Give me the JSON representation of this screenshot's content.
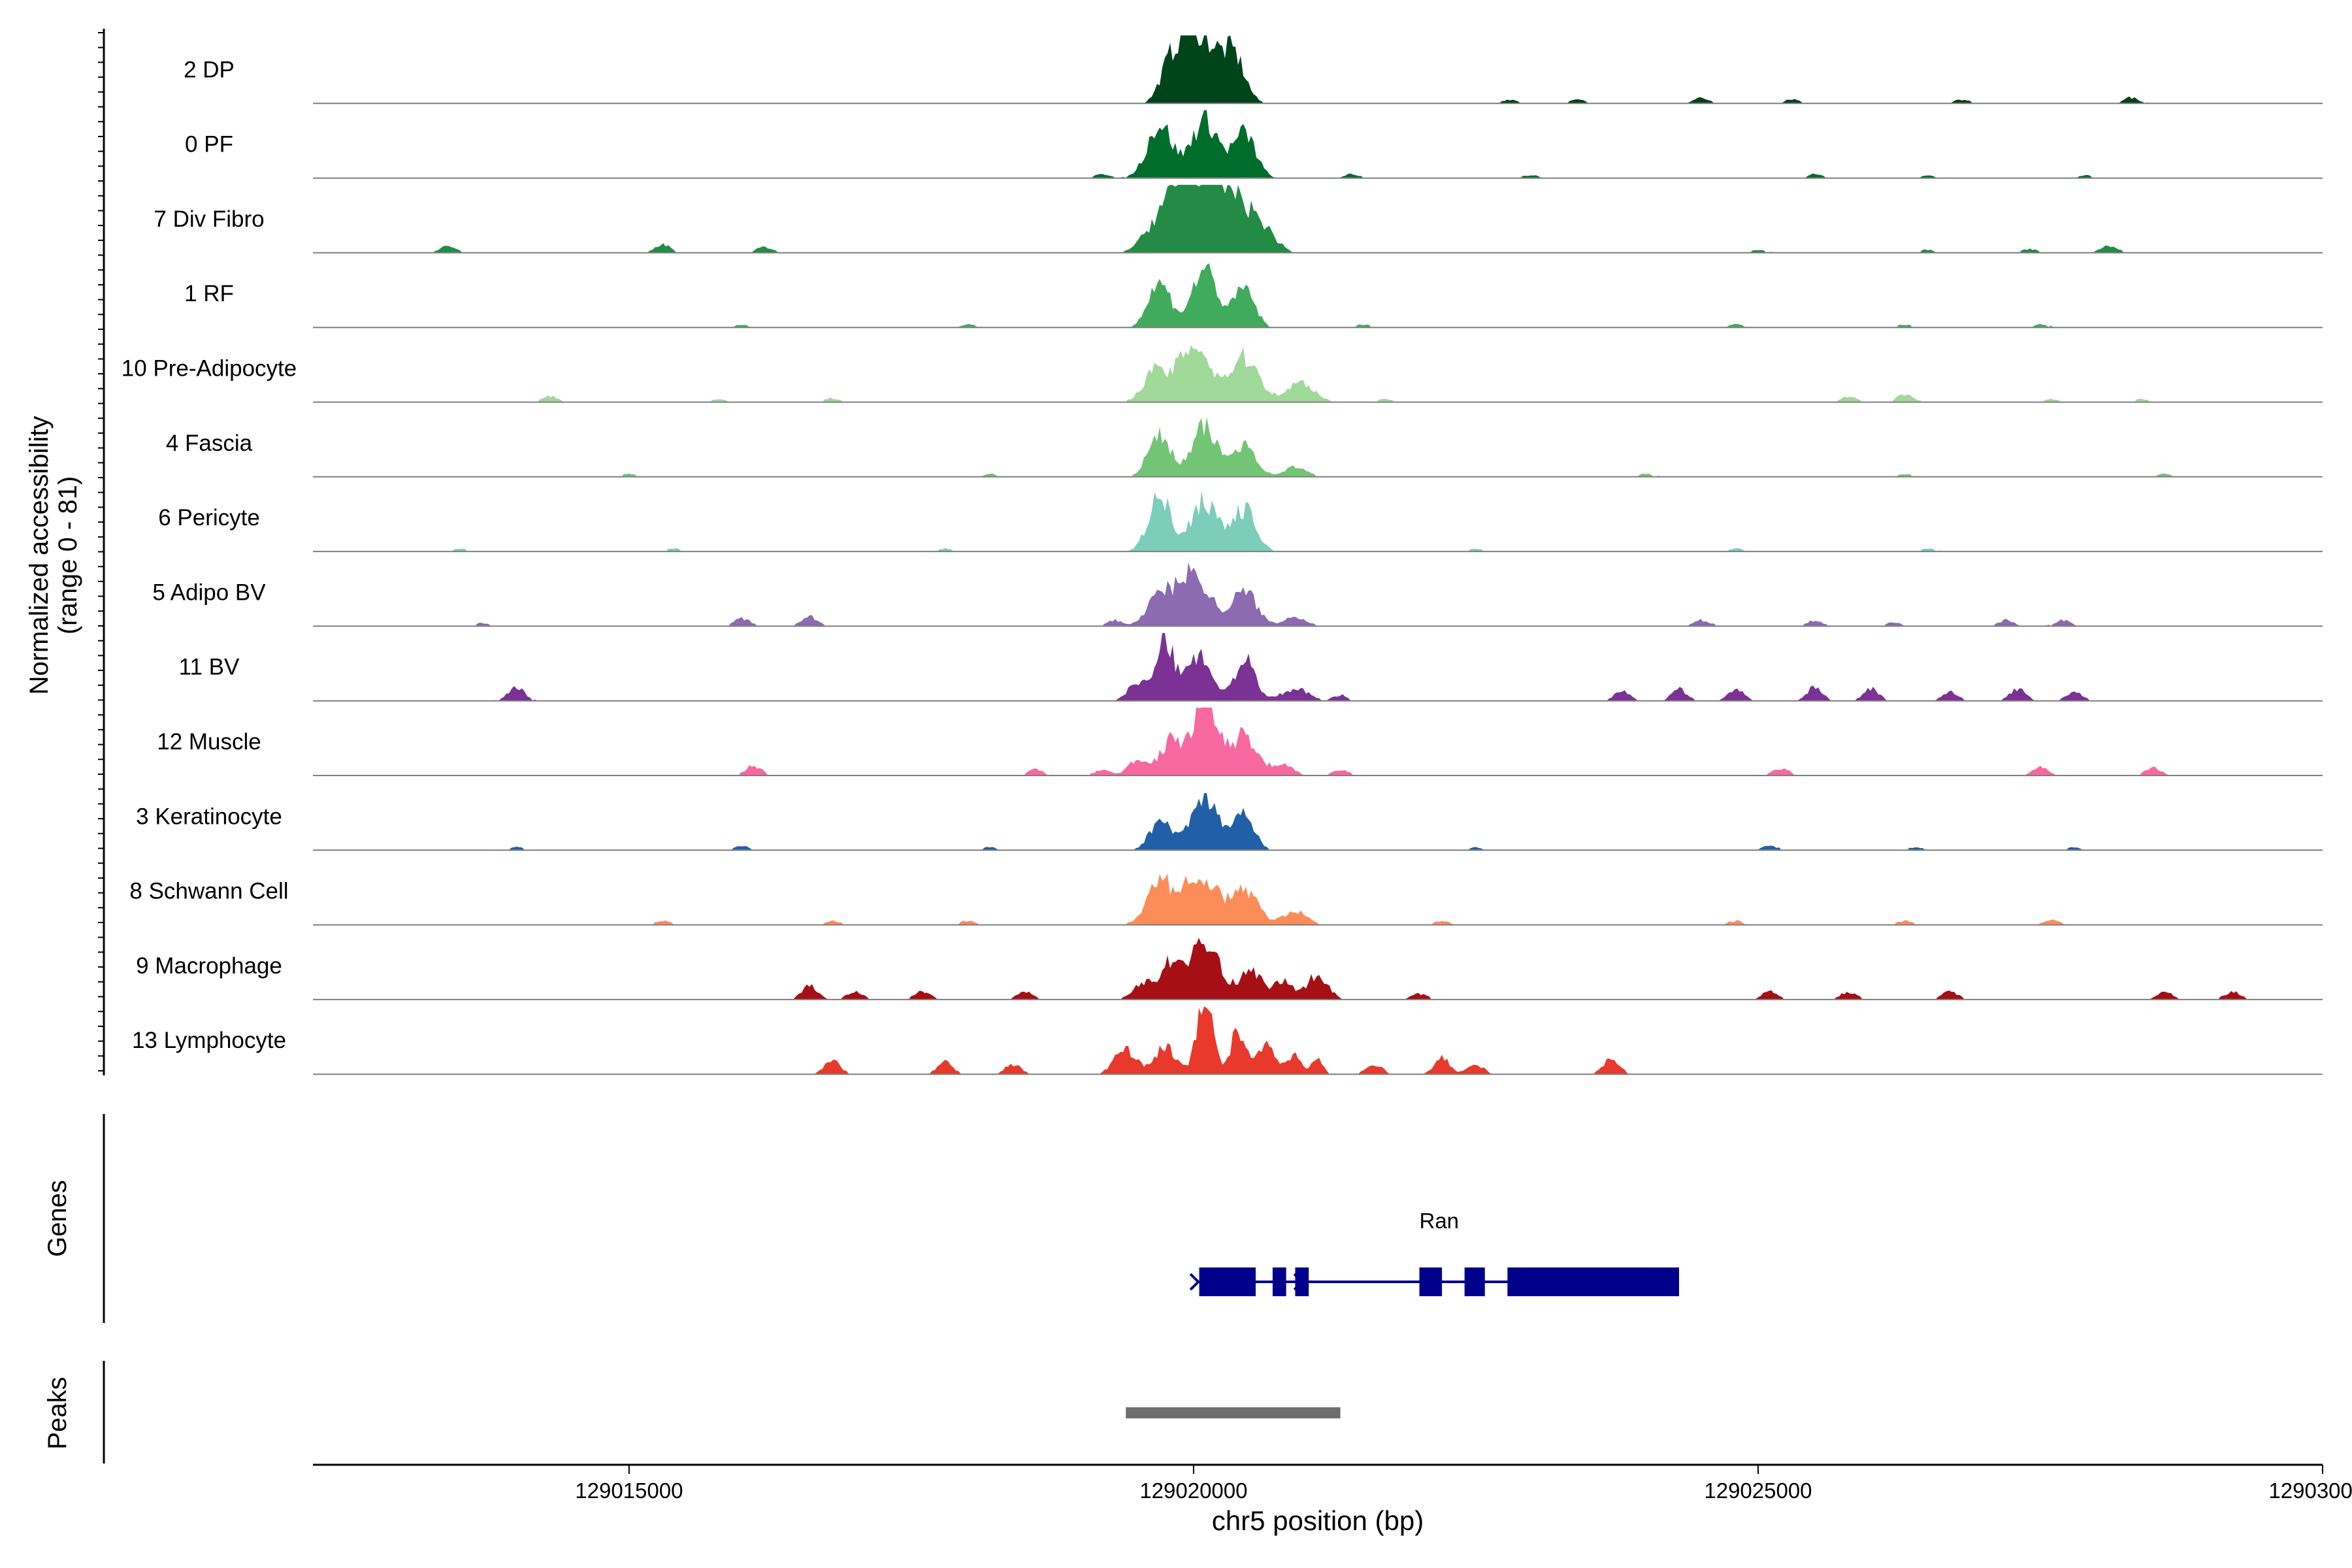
{
  "chart_data": {
    "type": "area",
    "ylabel": "Normalized accessibility\n(range 0 - 81)",
    "xlabel": "chr5 position (bp)",
    "xlim": [
      129012200,
      129030000
    ],
    "ylim": [
      0,
      81
    ],
    "x_ticks": [
      129015000,
      129020000,
      129025000,
      129030000
    ],
    "x_tick_labels": [
      "129015000",
      "129020000",
      "129025000",
      "129030000"
    ],
    "grid": false,
    "legend": "none",
    "tracks": [
      {
        "name": "2 DP",
        "color": "#00441b",
        "peaks": [
          [
            129019800,
            45,
            90
          ],
          [
            129019950,
            55,
            70
          ],
          [
            129020100,
            62,
            110
          ],
          [
            129020350,
            50,
            100
          ]
        ],
        "noise": [
          [
            129022800,
            4
          ],
          [
            129023400,
            4
          ],
          [
            129024500,
            6
          ],
          [
            129025300,
            4
          ],
          [
            129026800,
            4
          ],
          [
            129028300,
            6
          ]
        ]
      },
      {
        "name": "0 PF",
        "color": "#006d2c",
        "peaks": [
          [
            129019700,
            55,
            110
          ],
          [
            129020100,
            60,
            120
          ],
          [
            129020450,
            45,
            100
          ]
        ],
        "noise": [
          [
            129019200,
            4
          ],
          [
            129021400,
            4
          ],
          [
            129023000,
            3
          ],
          [
            129025500,
            4
          ],
          [
            129026500,
            3
          ],
          [
            129027900,
            3
          ]
        ]
      },
      {
        "name": "7 Div Fibro",
        "color": "#238b45",
        "peaks": [
          [
            129019750,
            40,
            150
          ],
          [
            129020050,
            80,
            160
          ],
          [
            129020350,
            50,
            130
          ],
          [
            129020600,
            25,
            120
          ]
        ],
        "noise": [
          [
            129013400,
            8
          ],
          [
            129015300,
            8
          ],
          [
            129016200,
            6
          ],
          [
            129025000,
            3
          ],
          [
            129026500,
            3
          ],
          [
            129027400,
            4
          ],
          [
            129028100,
            8
          ]
        ]
      },
      {
        "name": "1 RF",
        "color": "#41ab5d",
        "peaks": [
          [
            129019700,
            45,
            100
          ],
          [
            129020100,
            60,
            110
          ],
          [
            129020450,
            40,
            90
          ]
        ],
        "noise": [
          [
            129016000,
            3
          ],
          [
            129018000,
            3
          ],
          [
            129021500,
            3
          ],
          [
            129024800,
            3
          ],
          [
            129026300,
            3
          ],
          [
            129027500,
            3
          ]
        ]
      },
      {
        "name": "10 Pre-Adipocyte",
        "color": "#a1d99b",
        "peaks": [
          [
            129019650,
            30,
            100
          ],
          [
            129020000,
            60,
            140
          ],
          [
            129020450,
            45,
            130
          ],
          [
            129020950,
            20,
            120
          ]
        ],
        "noise": [
          [
            129014300,
            6
          ],
          [
            129015800,
            3
          ],
          [
            129016800,
            4
          ],
          [
            129021700,
            3
          ],
          [
            129025800,
            6
          ],
          [
            129026300,
            8
          ],
          [
            129027600,
            3
          ],
          [
            129028400,
            3
          ]
        ]
      },
      {
        "name": "4 Fascia",
        "color": "#74c476",
        "peaks": [
          [
            129019700,
            42,
            100
          ],
          [
            129020100,
            50,
            110
          ],
          [
            129020450,
            35,
            100
          ],
          [
            129020900,
            10,
            100
          ]
        ],
        "noise": [
          [
            129015000,
            3
          ],
          [
            129018200,
            3
          ],
          [
            129024000,
            3
          ],
          [
            129026300,
            3
          ],
          [
            129028600,
            3
          ]
        ]
      },
      {
        "name": "6 Pericyte",
        "color": "#7dcdbb",
        "peaks": [
          [
            129019700,
            55,
            100
          ],
          [
            129020100,
            52,
            120
          ],
          [
            129020450,
            42,
            100
          ]
        ],
        "noise": [
          [
            129013500,
            3
          ],
          [
            129015400,
            3
          ],
          [
            129017800,
            3
          ],
          [
            129022500,
            3
          ],
          [
            129024800,
            3
          ],
          [
            129026500,
            3
          ]
        ]
      },
      {
        "name": "5 Adipo BV",
        "color": "#8c6bb1",
        "peaks": [
          [
            129019700,
            30,
            110
          ],
          [
            129020000,
            55,
            140
          ],
          [
            129020450,
            35,
            110
          ],
          [
            129020900,
            10,
            100
          ]
        ],
        "noise": [
          [
            129013700,
            3
          ],
          [
            129016000,
            8
          ],
          [
            129016600,
            10
          ],
          [
            129019300,
            6
          ],
          [
            129024500,
            6
          ],
          [
            129025500,
            6
          ],
          [
            129026200,
            4
          ],
          [
            129027200,
            6
          ],
          [
            129027700,
            6
          ]
        ]
      },
      {
        "name": "11 BV",
        "color": "#7b3294",
        "peaks": [
          [
            129019500,
            20,
            80
          ],
          [
            129019750,
            60,
            80
          ],
          [
            129020050,
            50,
            100
          ],
          [
            129020450,
            42,
            90
          ],
          [
            129020900,
            12,
            120
          ],
          [
            129021300,
            6,
            60
          ]
        ],
        "noise": [
          [
            129014000,
            14
          ],
          [
            129023800,
            10
          ],
          [
            129024300,
            12
          ],
          [
            129024800,
            12
          ],
          [
            129025500,
            14
          ],
          [
            129026000,
            12
          ],
          [
            129026700,
            10
          ],
          [
            129027300,
            12
          ],
          [
            129027800,
            10
          ]
        ]
      },
      {
        "name": "12 Muscle",
        "color": "#f768a1",
        "peaks": [
          [
            129019500,
            15,
            80
          ],
          [
            129019800,
            35,
            100
          ],
          [
            129020100,
            75,
            110
          ],
          [
            129020450,
            40,
            120
          ],
          [
            129020800,
            10,
            90
          ]
        ],
        "noise": [
          [
            129016100,
            10
          ],
          [
            129018600,
            6
          ],
          [
            129019200,
            6
          ],
          [
            129021300,
            6
          ],
          [
            129025200,
            8
          ],
          [
            129027500,
            8
          ],
          [
            129028500,
            8
          ]
        ]
      },
      {
        "name": "3 Keratinocyte",
        "color": "#2160a8",
        "peaks": [
          [
            129019700,
            30,
            90
          ],
          [
            129020100,
            50,
            130
          ],
          [
            129020450,
            35,
            90
          ]
        ],
        "noise": [
          [
            129014000,
            3
          ],
          [
            129016000,
            4
          ],
          [
            129018200,
            3
          ],
          [
            129022500,
            3
          ],
          [
            129025100,
            4
          ],
          [
            129026400,
            3
          ],
          [
            129027800,
            3
          ]
        ]
      },
      {
        "name": "8 Schwann Cell",
        "color": "#fc8d59",
        "peaks": [
          [
            129019700,
            42,
            110
          ],
          [
            129020050,
            55,
            140
          ],
          [
            129020450,
            35,
            120
          ],
          [
            129020900,
            15,
            100
          ]
        ],
        "noise": [
          [
            129015300,
            4
          ],
          [
            129016800,
            4
          ],
          [
            129018000,
            4
          ],
          [
            129022200,
            4
          ],
          [
            129024800,
            4
          ],
          [
            129026300,
            4
          ],
          [
            129027600,
            6
          ]
        ]
      },
      {
        "name": "9 Macrophage",
        "color": "#a50f15",
        "peaks": [
          [
            129019550,
            18,
            80
          ],
          [
            129019800,
            40,
            90
          ],
          [
            129020100,
            65,
            120
          ],
          [
            129020500,
            30,
            100
          ],
          [
            129020800,
            18,
            90
          ],
          [
            129021100,
            25,
            90
          ]
        ],
        "noise": [
          [
            129016600,
            14
          ],
          [
            129017000,
            8
          ],
          [
            129017600,
            8
          ],
          [
            129018500,
            8
          ],
          [
            129022000,
            6
          ],
          [
            129025100,
            8
          ],
          [
            129025800,
            8
          ],
          [
            129026700,
            8
          ],
          [
            129028600,
            8
          ],
          [
            129029200,
            8
          ]
        ]
      },
      {
        "name": "13 Lymphocyte",
        "color": "#e8392c",
        "peaks": [
          [
            129019400,
            25,
            100
          ],
          [
            129019750,
            28,
            90
          ],
          [
            129020100,
            81,
            70
          ],
          [
            129020400,
            45,
            70
          ],
          [
            129020650,
            28,
            80
          ],
          [
            129020900,
            20,
            60
          ],
          [
            129021100,
            15,
            50
          ]
        ],
        "noise": [
          [
            129016800,
            14
          ],
          [
            129017800,
            12
          ],
          [
            129018400,
            10
          ],
          [
            129021600,
            10
          ],
          [
            129022200,
            16
          ],
          [
            129022500,
            10
          ],
          [
            129023700,
            16
          ]
        ]
      }
    ],
    "genes": {
      "label": "Genes",
      "gene_name": "Ran",
      "gene_span": [
        129020050,
        129024300
      ],
      "exons": [
        [
          129020050,
          129020550
        ],
        [
          129020700,
          129020820
        ],
        [
          129020900,
          129021020
        ],
        [
          129022000,
          129022200
        ],
        [
          129022400,
          129022580
        ],
        [
          129022780,
          129024300
        ]
      ]
    },
    "peaks_track": {
      "label": "Peaks",
      "regions": [
        [
          129019400,
          129021300
        ]
      ]
    }
  },
  "colors": {
    "baseline": "#7f7f7f",
    "gene": "#00008b",
    "peak_region": "#6e6e6e"
  }
}
